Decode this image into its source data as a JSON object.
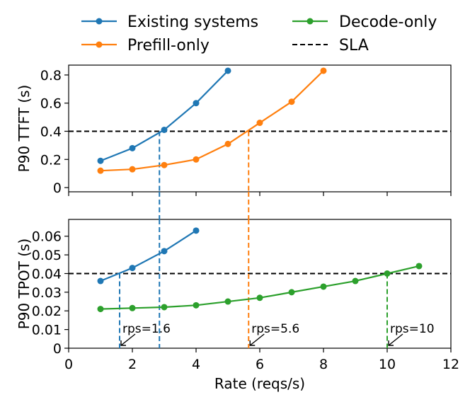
{
  "legend": {
    "items": [
      {
        "label": "Existing systems",
        "color": "#1f77b4",
        "style": "line-marker"
      },
      {
        "label": "Prefill-only",
        "color": "#ff7f0e",
        "style": "line-marker"
      },
      {
        "label": "Decode-only",
        "color": "#2ca02c",
        "style": "line-marker"
      },
      {
        "label": "SLA",
        "color": "#000000",
        "style": "dashed"
      }
    ]
  },
  "chart_data": [
    {
      "type": "line",
      "panel": "top",
      "ylabel": "P90 TTFT (s)",
      "xlim": [
        0,
        12
      ],
      "ylim": [
        -0.03,
        0.87
      ],
      "yticks": [
        0,
        0.2,
        0.4,
        0.6,
        0.8
      ],
      "ytick_labels": [
        "0",
        "0.2",
        "0.4",
        "0.6",
        "0.8"
      ],
      "sla": 0.4,
      "series": [
        {
          "name": "Existing systems",
          "color": "#1f77b4",
          "x": [
            1,
            2,
            3,
            4,
            5
          ],
          "y": [
            0.19,
            0.28,
            0.41,
            0.6,
            0.83
          ]
        },
        {
          "name": "Prefill-only",
          "color": "#ff7f0e",
          "x": [
            1,
            2,
            3,
            4,
            5,
            6,
            7,
            8
          ],
          "y": [
            0.12,
            0.13,
            0.16,
            0.2,
            0.31,
            0.46,
            0.61,
            0.83
          ]
        }
      ],
      "vlines": [
        {
          "x": 2.85,
          "color": "#1f77b4"
        },
        {
          "x": 5.65,
          "color": "#ff7f0e"
        }
      ]
    },
    {
      "type": "line",
      "panel": "bottom",
      "ylabel": "P90 TPOT (s)",
      "xlabel": "Rate (reqs/s)",
      "xlim": [
        0,
        12
      ],
      "ylim": [
        0,
        0.069
      ],
      "xticks": [
        0,
        2,
        4,
        6,
        8,
        10,
        12
      ],
      "xtick_labels": [
        "0",
        "2",
        "4",
        "6",
        "8",
        "10",
        "12"
      ],
      "yticks": [
        0,
        0.01,
        0.02,
        0.03,
        0.04,
        0.05,
        0.06
      ],
      "ytick_labels": [
        "0",
        "0.01",
        "0.02",
        "0.03",
        "0.04",
        "0.05",
        "0.06"
      ],
      "sla": 0.04,
      "series": [
        {
          "name": "Existing systems",
          "color": "#1f77b4",
          "x": [
            1,
            2,
            3,
            4
          ],
          "y": [
            0.036,
            0.043,
            0.052,
            0.063
          ]
        },
        {
          "name": "Decode-only",
          "color": "#2ca02c",
          "x": [
            1,
            2,
            3,
            4,
            5,
            6,
            7,
            8,
            9,
            10,
            11
          ],
          "y": [
            0.021,
            0.0215,
            0.022,
            0.023,
            0.025,
            0.027,
            0.03,
            0.033,
            0.036,
            0.04,
            0.044
          ]
        }
      ],
      "vlines": [
        {
          "x": 1.6,
          "color": "#1f77b4"
        },
        {
          "x": 2.85,
          "color": "#1f77b4"
        },
        {
          "x": 5.65,
          "color": "#ff7f0e"
        },
        {
          "x": 10.0,
          "color": "#2ca02c"
        }
      ],
      "annotations": [
        {
          "text": "rps=1.6",
          "x": 1.6
        },
        {
          "text": "rps=5.6",
          "x": 5.65
        },
        {
          "text": "rps=10",
          "x": 10.0
        }
      ]
    }
  ]
}
